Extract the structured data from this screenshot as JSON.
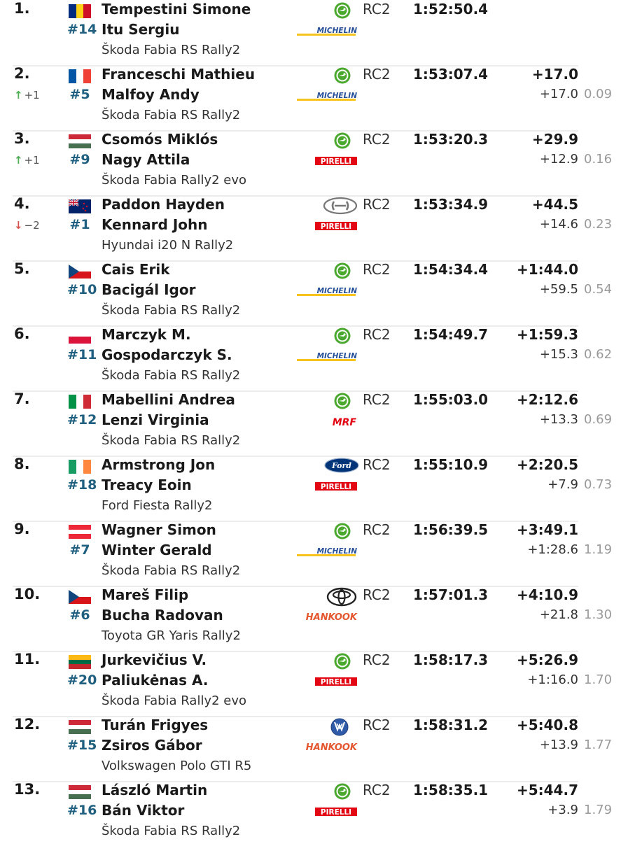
{
  "results": [
    {
      "pos": "1.",
      "change": null,
      "flag": "ROU",
      "num": "#14",
      "driver": "Tempestini Simone",
      "codriver": "Itu Sergiu",
      "car": "Škoda Fabia RS Rally2",
      "brand": "skoda-logo",
      "tyre": "MICHELIN",
      "cls": "RC2",
      "time": "1:52:50.4",
      "gap": "",
      "diff": "",
      "perkm": ""
    },
    {
      "pos": "2.",
      "change": {
        "dir": "up",
        "symbol": "↑",
        "value": "+1"
      },
      "flag": "FRA",
      "num": "#5",
      "driver": "Franceschi Mathieu",
      "codriver": "Malfoy Andy",
      "car": "Škoda Fabia RS Rally2",
      "brand": "skoda-logo",
      "tyre": "MICHELIN",
      "cls": "RC2",
      "time": "1:53:07.4",
      "gap": "+17.0",
      "diff": "+17.0",
      "perkm": "0.09"
    },
    {
      "pos": "3.",
      "change": {
        "dir": "up",
        "symbol": "↑",
        "value": "+1"
      },
      "flag": "HUN",
      "num": "#9",
      "driver": "Csomós Miklós",
      "codriver": "Nagy Attila",
      "car": "Škoda Fabia Rally2 evo",
      "brand": "skoda-logo",
      "tyre": "PIRELLI",
      "cls": "RC2",
      "time": "1:53:20.3",
      "gap": "+29.9",
      "diff": "+12.9",
      "perkm": "0.16"
    },
    {
      "pos": "4.",
      "change": {
        "dir": "down",
        "symbol": "↓",
        "value": "−2"
      },
      "flag": "NZL",
      "num": "#1",
      "driver": "Paddon Hayden",
      "codriver": "Kennard John",
      "car": "Hyundai i20 N Rally2",
      "brand": "hyundai-logo",
      "tyre": "PIRELLI",
      "cls": "RC2",
      "time": "1:53:34.9",
      "gap": "+44.5",
      "diff": "+14.6",
      "perkm": "0.23"
    },
    {
      "pos": "5.",
      "change": null,
      "flag": "CZE",
      "num": "#10",
      "driver": "Cais Erik",
      "codriver": "Bacigál Igor",
      "car": "Škoda Fabia RS Rally2",
      "brand": "skoda-logo",
      "tyre": "MICHELIN",
      "cls": "RC2",
      "time": "1:54:34.4",
      "gap": "+1:44.0",
      "diff": "+59.5",
      "perkm": "0.54"
    },
    {
      "pos": "6.",
      "change": null,
      "flag": "POL",
      "num": "#11",
      "driver": "Marczyk M.",
      "codriver": "Gospodarczyk S.",
      "car": "Škoda Fabia RS Rally2",
      "brand": "skoda-logo",
      "tyre": "MICHELIN",
      "cls": "RC2",
      "time": "1:54:49.7",
      "gap": "+1:59.3",
      "diff": "+15.3",
      "perkm": "0.62"
    },
    {
      "pos": "7.",
      "change": null,
      "flag": "ITA",
      "num": "#12",
      "driver": "Mabellini Andrea",
      "codriver": "Lenzi Virginia",
      "car": "Škoda Fabia RS Rally2",
      "brand": "skoda-logo",
      "tyre": "MRF",
      "cls": "RC2",
      "time": "1:55:03.0",
      "gap": "+2:12.6",
      "diff": "+13.3",
      "perkm": "0.69"
    },
    {
      "pos": "8.",
      "change": null,
      "flag": "IRL",
      "num": "#18",
      "driver": "Armstrong Jon",
      "codriver": "Treacy Eoin",
      "car": "Ford Fiesta Rally2",
      "brand": "ford-logo",
      "tyre": "PIRELLI",
      "cls": "RC2",
      "time": "1:55:10.9",
      "gap": "+2:20.5",
      "diff": "+7.9",
      "perkm": "0.73"
    },
    {
      "pos": "9.",
      "change": null,
      "flag": "AUT",
      "num": "#7",
      "driver": "Wagner Simon",
      "codriver": "Winter Gerald",
      "car": "Škoda Fabia RS Rally2",
      "brand": "skoda-logo",
      "tyre": "MICHELIN",
      "cls": "RC2",
      "time": "1:56:39.5",
      "gap": "+3:49.1",
      "diff": "+1:28.6",
      "perkm": "1.19"
    },
    {
      "pos": "10.",
      "change": null,
      "flag": "CZE",
      "num": "#6",
      "driver": "Mareš Filip",
      "codriver": "Bucha Radovan",
      "car": "Toyota GR Yaris Rally2",
      "brand": "toyota-logo",
      "tyre": "HANKOOK",
      "cls": "RC2",
      "time": "1:57:01.3",
      "gap": "+4:10.9",
      "diff": "+21.8",
      "perkm": "1.30"
    },
    {
      "pos": "11.",
      "change": null,
      "flag": "LTU",
      "num": "#20",
      "driver": "Jurkevičius V.",
      "codriver": "Paliukėnas A.",
      "car": "Škoda Fabia Rally2 evo",
      "brand": "skoda-logo",
      "tyre": "PIRELLI",
      "cls": "RC2",
      "time": "1:58:17.3",
      "gap": "+5:26.9",
      "diff": "+1:16.0",
      "perkm": "1.70"
    },
    {
      "pos": "12.",
      "change": null,
      "flag": "HUN",
      "num": "#15",
      "driver": "Turán Frigyes",
      "codriver": "Zsiros Gábor",
      "car": "Volkswagen Polo GTI R5",
      "brand": "volkswagen-logo",
      "tyre": "HANKOOK",
      "cls": "RC2",
      "time": "1:58:31.2",
      "gap": "+5:40.8",
      "diff": "+13.9",
      "perkm": "1.77"
    },
    {
      "pos": "13.",
      "change": null,
      "flag": "HUN",
      "num": "#16",
      "driver": "László Martin",
      "codriver": "Bán Viktor",
      "car": "Škoda Fabia RS Rally2",
      "brand": "skoda-logo",
      "tyre": "PIRELLI",
      "cls": "RC2",
      "time": "1:58:35.1",
      "gap": "+5:44.7",
      "diff": "+3.9",
      "perkm": "1.79"
    }
  ],
  "flags": {
    "ROU": {
      "dir": "v",
      "colors": [
        "#002b7f",
        "#fcd116",
        "#ce1126"
      ]
    },
    "FRA": {
      "dir": "v",
      "colors": [
        "#0055a4",
        "#ffffff",
        "#ef4135"
      ]
    },
    "HUN": {
      "dir": "h",
      "colors": [
        "#ce2939",
        "#ffffff",
        "#477050"
      ]
    },
    "NZL": {
      "dir": "v",
      "colors": [
        "#012169",
        "#012169",
        "#012169"
      ]
    },
    "CZE": {
      "dir": "h",
      "colors": [
        "#ffffff",
        "#d7141a"
      ]
    },
    "POL": {
      "dir": "h",
      "colors": [
        "#ffffff",
        "#dc143c"
      ]
    },
    "ITA": {
      "dir": "v",
      "colors": [
        "#009246",
        "#ffffff",
        "#ce2b37"
      ]
    },
    "IRL": {
      "dir": "v",
      "colors": [
        "#169b62",
        "#ffffff",
        "#ff883e"
      ]
    },
    "AUT": {
      "dir": "h",
      "colors": [
        "#ed2939",
        "#ffffff",
        "#ed2939"
      ]
    },
    "LTU": {
      "dir": "h",
      "colors": [
        "#fdb913",
        "#006a44",
        "#c1272d"
      ]
    }
  },
  "colors": {
    "number": "#1f6080",
    "up": "#4caf50",
    "down": "#d9534f",
    "perkm": "#9a9a9a",
    "skoda": "#4ba82e",
    "michelin": "#27509b",
    "pirelli": "#e30613",
    "hankook": "#e4572e",
    "ford": "#003478"
  }
}
